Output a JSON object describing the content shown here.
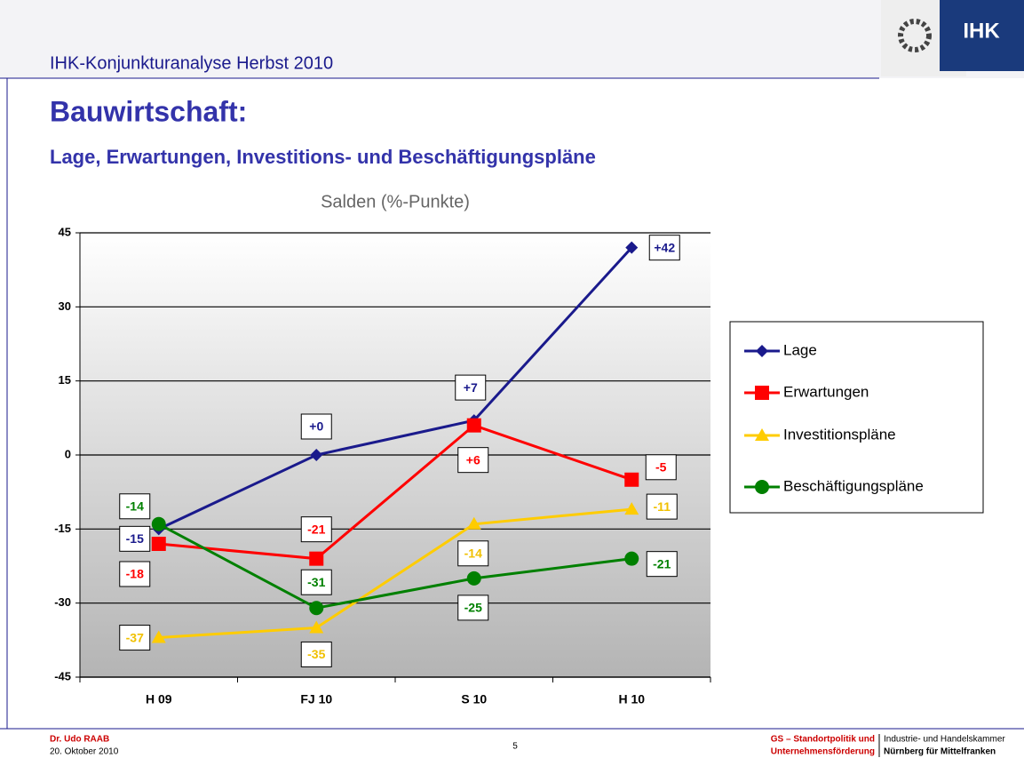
{
  "header": {
    "title": "IHK-Konjunkturanalyse Herbst 2010",
    "logo": "IHK"
  },
  "slide": {
    "title": "Bauwirtschaft:",
    "subtitle": "Lage, Erwartungen, Investitions- und Beschäftigungspläne"
  },
  "chart_data": {
    "type": "line",
    "title": "Salden (%-Punkte)",
    "categories": [
      "H 09",
      "FJ 10",
      "S 10",
      "H 10"
    ],
    "ylim": [
      -45,
      45
    ],
    "yticks": [
      -45,
      -30,
      -15,
      0,
      15,
      30,
      45
    ],
    "grid": true,
    "legend": "right",
    "series": [
      {
        "name": "Lage",
        "color": "#1a1a8c",
        "marker": "diamond",
        "values": [
          -15,
          0,
          7,
          42
        ],
        "value_labels": [
          "-15",
          "+0",
          "+7",
          "+42"
        ]
      },
      {
        "name": "Erwartungen",
        "color": "#ff0000",
        "marker": "square",
        "values": [
          -18,
          -21,
          6,
          -5
        ],
        "value_labels": [
          "-18",
          "-21",
          "+6",
          "-5"
        ]
      },
      {
        "name": "Investitionspläne",
        "color": "#ffcc00",
        "marker": "triangle",
        "values": [
          -37,
          -35,
          -14,
          -11
        ],
        "value_labels": [
          "-37",
          "-35",
          "-14",
          "-11"
        ]
      },
      {
        "name": "Beschäftigungspläne",
        "color": "#008000",
        "marker": "circle",
        "values": [
          -14,
          -31,
          -25,
          -21
        ],
        "value_labels": [
          "-14",
          "-31",
          "-25",
          "-21"
        ]
      }
    ]
  },
  "footer": {
    "author": "Dr. Udo RAAB",
    "date": "20. Oktober 2010",
    "page": "5",
    "dept1": "GS – Standortpolitik und",
    "dept2": "Unternehmensförderung",
    "org1": "Industrie- und Handelskammer",
    "org2": "Nürnberg für Mittelfranken"
  }
}
